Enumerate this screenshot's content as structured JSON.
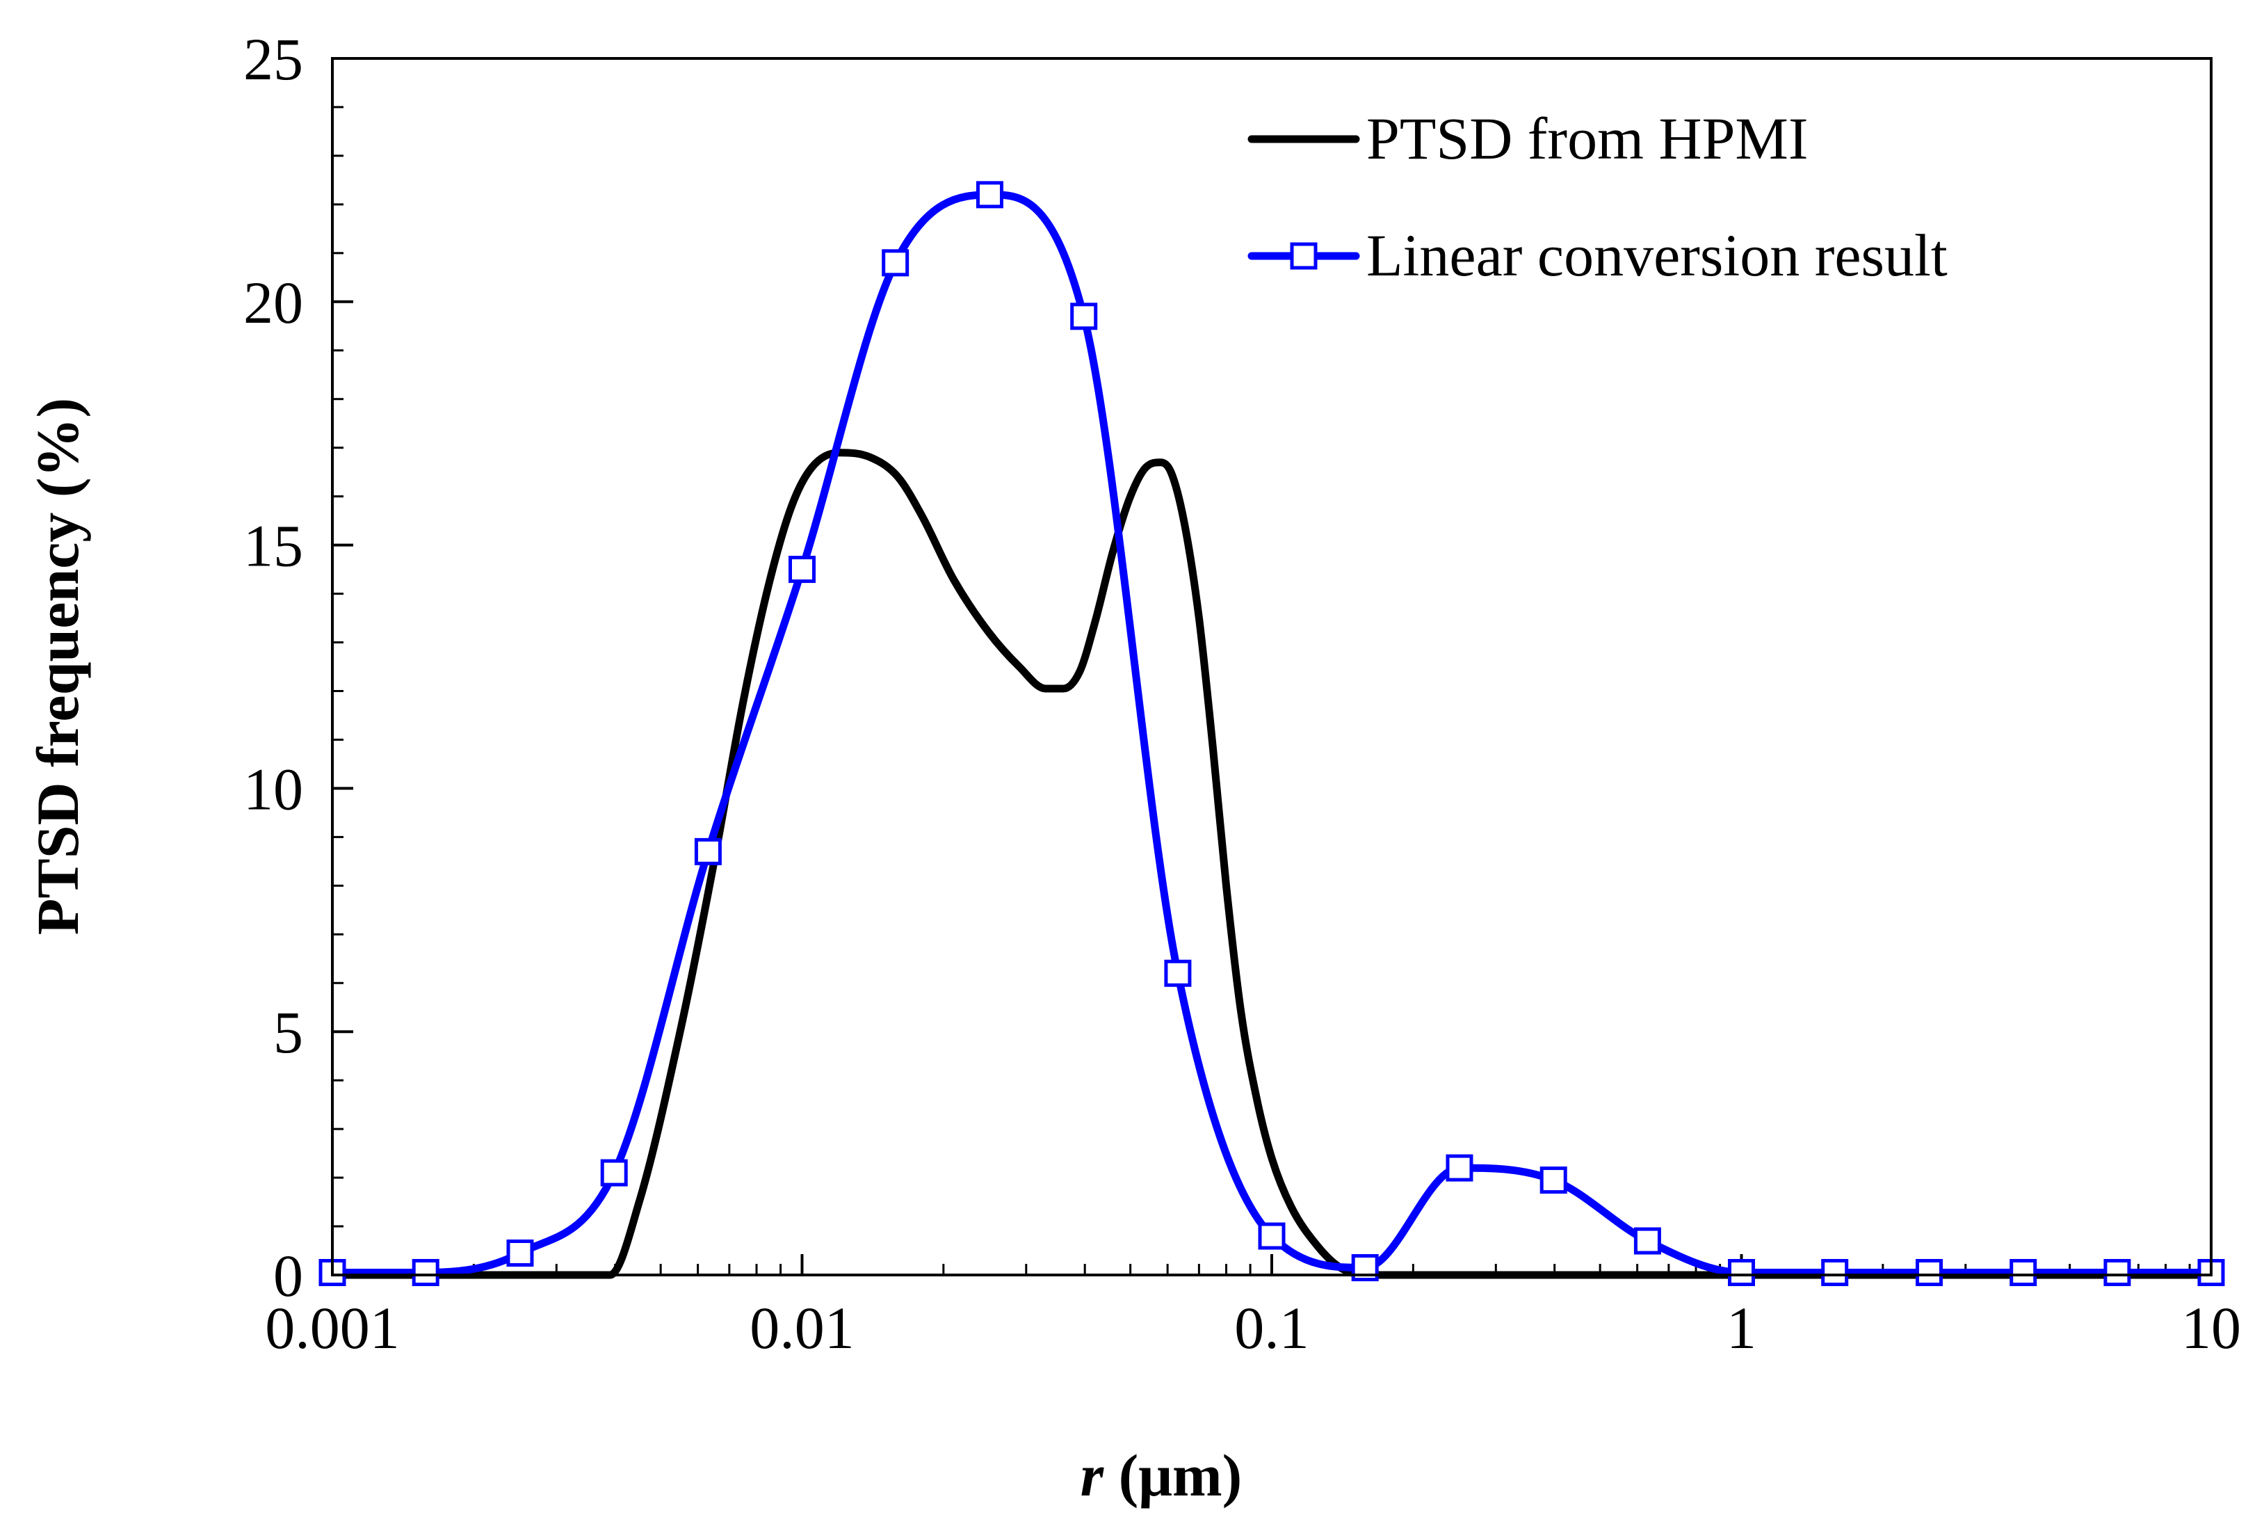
{
  "chart_data": {
    "type": "line",
    "title": "",
    "xlabel_var": "r",
    "xlabel_unit": "(μm)",
    "ylabel": "PTSD frequency (%)",
    "xscale": "log",
    "xlim": [
      0.001,
      10
    ],
    "ylim": [
      0,
      25
    ],
    "x_ticks": [
      0.001,
      0.01,
      0.1,
      1,
      10
    ],
    "x_tick_labels": [
      "0.001",
      "0.01",
      "0.1",
      "1",
      "10"
    ],
    "y_ticks": [
      0,
      5,
      10,
      15,
      20,
      25
    ],
    "y_tick_labels": [
      "0",
      "5",
      "10",
      "15",
      "20",
      "25"
    ],
    "y_minor_step": 1,
    "legend_position": "top-right",
    "series": [
      {
        "name": "PTSD from HPMI",
        "color": "#000000",
        "marker": "none",
        "x": [
          0.001,
          0.002,
          0.003,
          0.0039,
          0.0045,
          0.0055,
          0.0065,
          0.0075,
          0.0085,
          0.0095,
          0.0105,
          0.012,
          0.014,
          0.016,
          0.018,
          0.021,
          0.025,
          0.029,
          0.033,
          0.036,
          0.039,
          0.042,
          0.046,
          0.05,
          0.054,
          0.058,
          0.061,
          0.065,
          0.07,
          0.075,
          0.08,
          0.086,
          0.093,
          0.1,
          0.11,
          0.125,
          0.14,
          0.16,
          0.2,
          0.3,
          0.5,
          0.8,
          1,
          2,
          10
        ],
        "y": [
          0,
          0,
          0,
          0,
          1.5,
          5.0,
          8.5,
          11.8,
          14.2,
          15.8,
          16.6,
          16.9,
          16.8,
          16.4,
          15.6,
          14.3,
          13.2,
          12.5,
          12.05,
          12.05,
          12.4,
          13.4,
          14.9,
          16.0,
          16.6,
          16.7,
          16.5,
          15.5,
          13.5,
          10.8,
          8.0,
          5.4,
          3.6,
          2.4,
          1.4,
          0.6,
          0.15,
          0,
          0,
          0,
          0,
          0,
          0,
          0,
          0
        ]
      },
      {
        "name": "Linear conversion result",
        "color": "#0000ff",
        "marker": "square",
        "x": [
          0.001,
          0.00158,
          0.00251,
          0.00398,
          0.00631,
          0.01,
          0.0158,
          0.0251,
          0.0398,
          0.0631,
          0.1,
          0.158,
          0.251,
          0.398,
          0.631,
          1,
          1.58,
          2.51,
          3.98,
          6.31,
          10
        ],
        "y": [
          0.05,
          0.05,
          0.45,
          2.1,
          8.7,
          14.5,
          20.8,
          22.2,
          19.7,
          6.2,
          0.8,
          0.15,
          2.2,
          1.95,
          0.7,
          0.05,
          0.05,
          0.05,
          0.05,
          0.05,
          0.05
        ]
      }
    ]
  }
}
